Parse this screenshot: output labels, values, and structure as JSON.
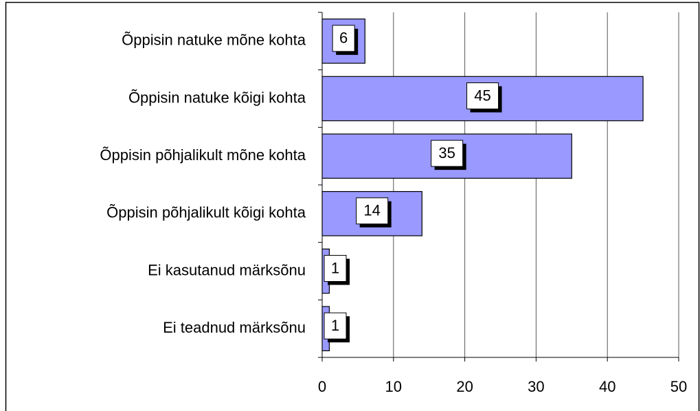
{
  "chart_data": {
    "type": "hbar",
    "categories": [
      "Õppisin natuke mõne kohta",
      "Õppisin natuke kõigi kohta",
      "Õppisin põhjalikult mõne kohta",
      "Õppisin põhjalikult kõigi kohta",
      "Ei kasutanud märksõnu",
      "Ei teadnud märksõnu"
    ],
    "values": [
      6,
      45,
      35,
      14,
      1,
      1
    ],
    "color": "#9999ff",
    "xlim": [
      0,
      50
    ],
    "xticks": [
      0,
      10,
      20,
      30,
      40,
      50
    ],
    "grid": true
  }
}
